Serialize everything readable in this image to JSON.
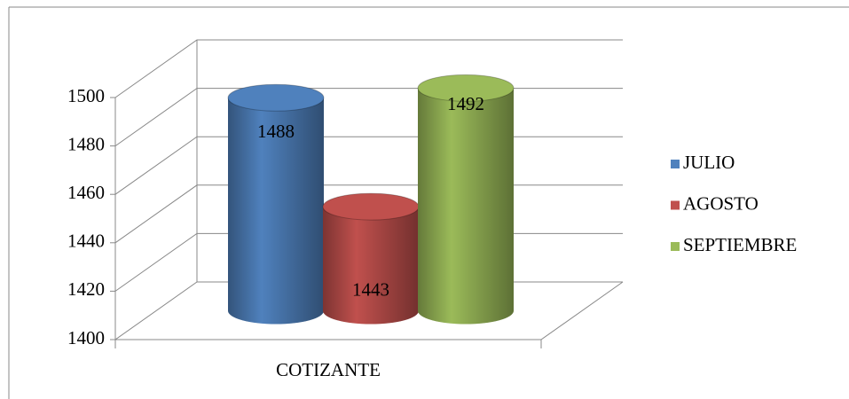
{
  "chart_data": {
    "type": "bar3d",
    "categories": [
      "COTIZANTE"
    ],
    "series": [
      {
        "name": "JULIO",
        "color": "#4f81bd",
        "values": [
          1488
        ]
      },
      {
        "name": "AGOSTO",
        "color": "#c0504d",
        "values": [
          1443
        ]
      },
      {
        "name": "SEPTIEMBRE",
        "color": "#9bbb59",
        "values": [
          1492
        ]
      }
    ],
    "ylim": [
      1400,
      1500
    ],
    "yticks": [
      1400,
      1420,
      1440,
      1460,
      1480,
      1500
    ],
    "grid": true,
    "legend": "right"
  }
}
